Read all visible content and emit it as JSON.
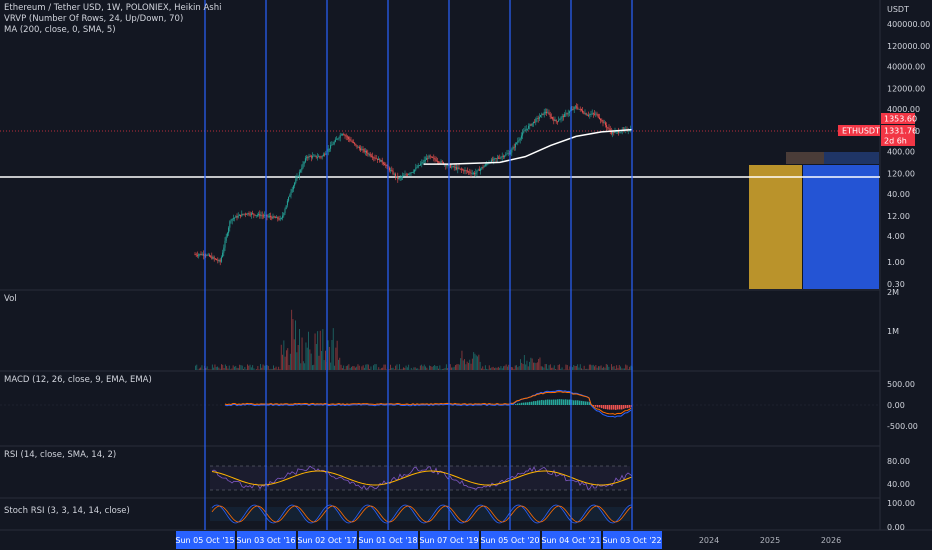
{
  "header": {
    "title": "Ethereum / Tether USD, 1W, POLONIEX, Heikin Ashi",
    "vrvp": "VRVP (Number Of Rows, 24, Up/Down, 70)",
    "ma": "MA (200, close, 0, SMA, 5)"
  },
  "price_axis": {
    "currency": "USDT",
    "ticks": [
      "400000.00",
      "120000.00",
      "40000.00",
      "12000.00",
      "4000.00",
      "1200.00",
      "400.00",
      "120.00",
      "40.00",
      "12.00",
      "4.00",
      "1.00",
      "0.30"
    ],
    "ticker": "ETHUSDT",
    "current_price": "1353.60",
    "last_price": "1331.76",
    "countdown": "2d 6h",
    "accent_color": "#f23645"
  },
  "panes": {
    "volume": {
      "label": "Vol",
      "ticks": [
        "2M",
        "1M"
      ]
    },
    "macd": {
      "label": "MACD (12, 26, close, 9, EMA, EMA)",
      "ticks": [
        "500.00",
        "0.00",
        "-500.00"
      ]
    },
    "rsi": {
      "label": "RSI (14, close, SMA, 14, 2)",
      "ticks": [
        "80.00",
        "40.00"
      ]
    },
    "stoch": {
      "label": "Stoch RSI (3, 3, 14, 14, close)",
      "ticks": [
        "100.00",
        "0.00"
      ]
    }
  },
  "time_axis": {
    "highlighted": [
      "Sun 05 Oct '15",
      "Sun 03 Oct '16",
      "Sun 02 Oct '17",
      "Sun 01 Oct '18",
      "Sun 07 Oct '19",
      "Sun 05 Oct '20",
      "Sun 04 Oct '21",
      "Sun 03 Oct '22"
    ],
    "years": [
      "2024",
      "2025",
      "2026"
    ],
    "highlight_color": "#2962ff"
  },
  "chart_data": {
    "type": "candlestick",
    "title": "Ethereum / Tether USD, 1W, POLONIEX, Heikin Ashi",
    "y_scale": "log",
    "ylim": [
      0.3,
      400000
    ],
    "series": [
      {
        "name": "ETHUSDT",
        "x": [
          "2015-10",
          "2016-01",
          "2016-03",
          "2016-06",
          "2016-10",
          "2017-01",
          "2017-03",
          "2017-06",
          "2017-09",
          "2018-01",
          "2018-04",
          "2018-09",
          "2018-12",
          "2019-03",
          "2019-06",
          "2019-10",
          "2020-03",
          "2020-06",
          "2020-10",
          "2021-01",
          "2021-05",
          "2021-07",
          "2021-11",
          "2022-01",
          "2022-03",
          "2022-06",
          "2022-10"
        ],
        "values": [
          1.5,
          1.0,
          10,
          14,
          12,
          10,
          50,
          300,
          300,
          1100,
          500,
          220,
          90,
          140,
          300,
          180,
          120,
          230,
          370,
          1300,
          3500,
          2000,
          4500,
          3000,
          3000,
          1100,
          1330
        ]
      },
      {
        "name": "MA 200",
        "x": [
          "2019-05",
          "2019-10",
          "2020-03",
          "2020-08",
          "2021-01",
          "2021-06",
          "2021-11",
          "2022-04",
          "2022-10"
        ],
        "values": [
          200,
          200,
          210,
          220,
          300,
          550,
          900,
          1150,
          1300
        ]
      }
    ],
    "volume_profile": {
      "up_down": [
        {
          "price_to": 0.3,
          "price_from": 100,
          "up": 40,
          "down": 42
        }
      ]
    },
    "horizontal_line": 100,
    "macd": {
      "range": [
        -500,
        500
      ]
    },
    "rsi": {
      "levels": [
        30,
        70
      ]
    }
  }
}
